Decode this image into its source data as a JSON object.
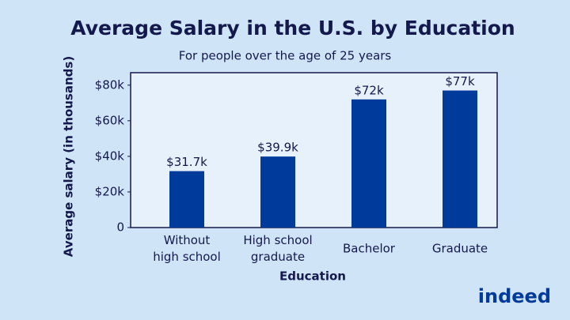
{
  "chart_data": {
    "type": "bar",
    "title": "Average Salary in the U.S. by Education",
    "subtitle": "For people over the age of 25 years",
    "x_label": "Education",
    "y_label": "Average salary (in thousands)",
    "categories": [
      "Without\nhigh school",
      "High school\ngraduate",
      "Bachelor",
      "Graduate"
    ],
    "values": [
      31.7,
      39.9,
      72,
      77
    ],
    "value_labels": [
      "$31.7k",
      "$39.9k",
      "$72k",
      "$77k"
    ],
    "color": "#003a9b",
    "ylim": [
      0,
      87
    ],
    "yticks": [
      0,
      {
        "value": 20,
        "label": "$20k"
      },
      {
        "value": 40,
        "label": "$40k"
      },
      {
        "value": 60,
        "label": "$60k"
      },
      {
        "value": 80,
        "label": "$80k"
      }
    ],
    "grid": false,
    "logo": "indeed"
  }
}
